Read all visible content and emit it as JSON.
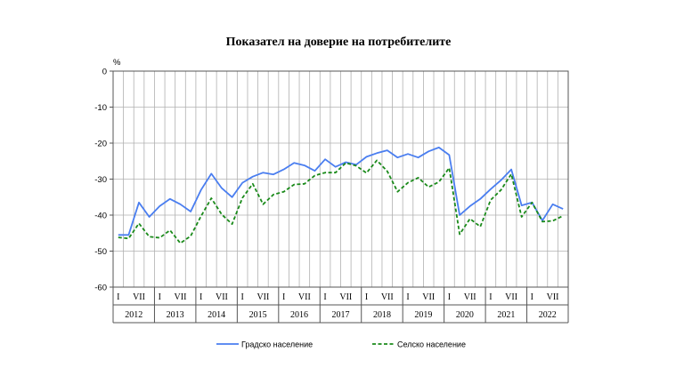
{
  "chart_data": {
    "type": "line",
    "title": "Показател на доверие на потребителите",
    "ylabel": "%",
    "ylim": [
      -60,
      0
    ],
    "yticks": [
      0,
      -10,
      -20,
      -30,
      -40,
      -50,
      -60
    ],
    "grid": true,
    "legend_position": "bottom",
    "month_labels": [
      "I",
      "VII"
    ],
    "years": [
      "2012",
      "2013",
      "2014",
      "2015",
      "2016",
      "2017",
      "2018",
      "2019",
      "2020",
      "2021",
      "2022"
    ],
    "x": [
      "2012-I",
      "2012-IV",
      "2012-VII",
      "2012-X",
      "2013-I",
      "2013-IV",
      "2013-VII",
      "2013-X",
      "2014-I",
      "2014-IV",
      "2014-VII",
      "2014-X",
      "2015-I",
      "2015-IV",
      "2015-VII",
      "2015-X",
      "2016-I",
      "2016-IV",
      "2016-VII",
      "2016-X",
      "2017-I",
      "2017-IV",
      "2017-VII",
      "2017-X",
      "2018-I",
      "2018-IV",
      "2018-VII",
      "2018-X",
      "2019-I",
      "2019-IV",
      "2019-VII",
      "2019-X",
      "2020-I",
      "2020-IV",
      "2020-VII",
      "2020-X",
      "2021-I",
      "2021-IV",
      "2021-VII",
      "2021-X",
      "2022-I",
      "2022-IV",
      "2022-VII",
      "2022-X"
    ],
    "series": [
      {
        "name": "Градско население",
        "color": "#4a7ef0",
        "style": "solid",
        "values": [
          -45.5,
          -45.5,
          -36.5,
          -40.5,
          -37.5,
          -35.5,
          -37,
          -39,
          -33,
          -28.5,
          -32.5,
          -35,
          -31,
          -29.3,
          -28.2,
          -28.7,
          -27.3,
          -25.5,
          -26.2,
          -27.7,
          -24.5,
          -26.6,
          -25.3,
          -26,
          -23.8,
          -22.8,
          -22,
          -24,
          -23,
          -24,
          -22.3,
          -21.2,
          -23.3,
          -40,
          -37.5,
          -35.5,
          -32.8,
          -30.3,
          -27.3,
          -37.3,
          -36.5,
          -41.5,
          -37,
          -38.3
        ]
      },
      {
        "name": "Селско население",
        "color": "#1a8a1a",
        "style": "dashed",
        "values": [
          -46.2,
          -46.5,
          -42.3,
          -46,
          -46.3,
          -44.2,
          -47.8,
          -45.8,
          -40.3,
          -35.3,
          -39.8,
          -42.5,
          -35.2,
          -31.3,
          -37,
          -34.3,
          -33.5,
          -31.5,
          -31.3,
          -29,
          -28.2,
          -28.2,
          -25.5,
          -26.3,
          -28.3,
          -24.8,
          -27.8,
          -33.5,
          -31,
          -29.6,
          -32.2,
          -30.8,
          -26.9,
          -45.3,
          -41,
          -43.2,
          -35.8,
          -33,
          -28.6,
          -40.5,
          -36.5,
          -41.8,
          -41.6,
          -40.2
        ]
      }
    ]
  }
}
